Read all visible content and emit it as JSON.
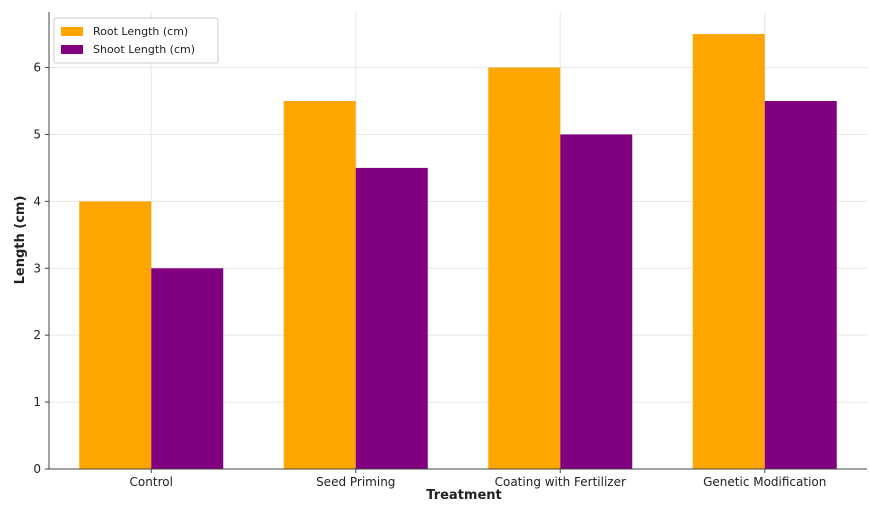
{
  "chart_data": {
    "type": "bar",
    "title": "",
    "xlabel": "Treatment",
    "ylabel": "Length (cm)",
    "categories": [
      "Control",
      "Seed Priming",
      "Coating with Fertilizer",
      "Genetic Modification"
    ],
    "series": [
      {
        "name": "Root Length (cm)",
        "values": [
          4.0,
          5.5,
          6.0,
          6.5
        ],
        "color": "#FFA500"
      },
      {
        "name": "Shoot Length (cm)",
        "values": [
          3.0,
          4.5,
          5.0,
          5.5
        ],
        "color": "#800080"
      }
    ],
    "yticks": [
      0,
      1,
      2,
      3,
      4,
      5,
      6
    ],
    "ylim": [
      0,
      6.83
    ],
    "grid": true,
    "legend_position": "top-left"
  }
}
